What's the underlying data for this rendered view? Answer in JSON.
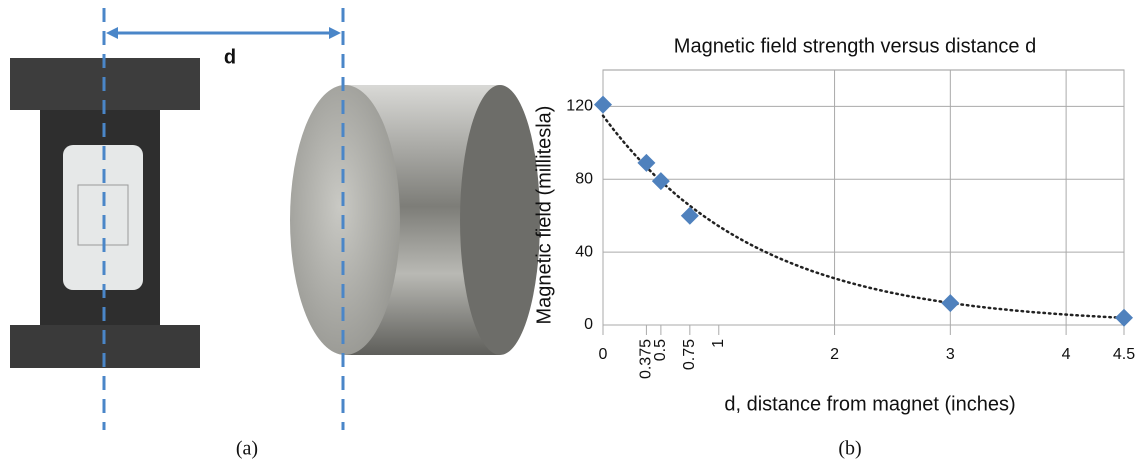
{
  "figure": {
    "photo_label": "(a)",
    "chart_label": "(b)",
    "distance_label": "d"
  },
  "chart_data": {
    "type": "scatter",
    "title": "Magnetic field strength versus distance d",
    "x_label": "d, distance from magnet (inches)",
    "y_label": "Magnetic field (millitesla)",
    "x": [
      0,
      0.375,
      0.5,
      0.75,
      3,
      4.5
    ],
    "values": [
      121,
      89,
      79,
      60,
      12,
      4
    ],
    "color": "#4f81bd",
    "trendline": "exponential",
    "xlim": [
      0,
      4.5
    ],
    "xticks": [
      0,
      0.375,
      0.5,
      0.75,
      1,
      2,
      3,
      4,
      4.5
    ],
    "ylim": [
      0,
      140
    ],
    "yticks": [
      0,
      40,
      80,
      120
    ],
    "grid": true
  }
}
